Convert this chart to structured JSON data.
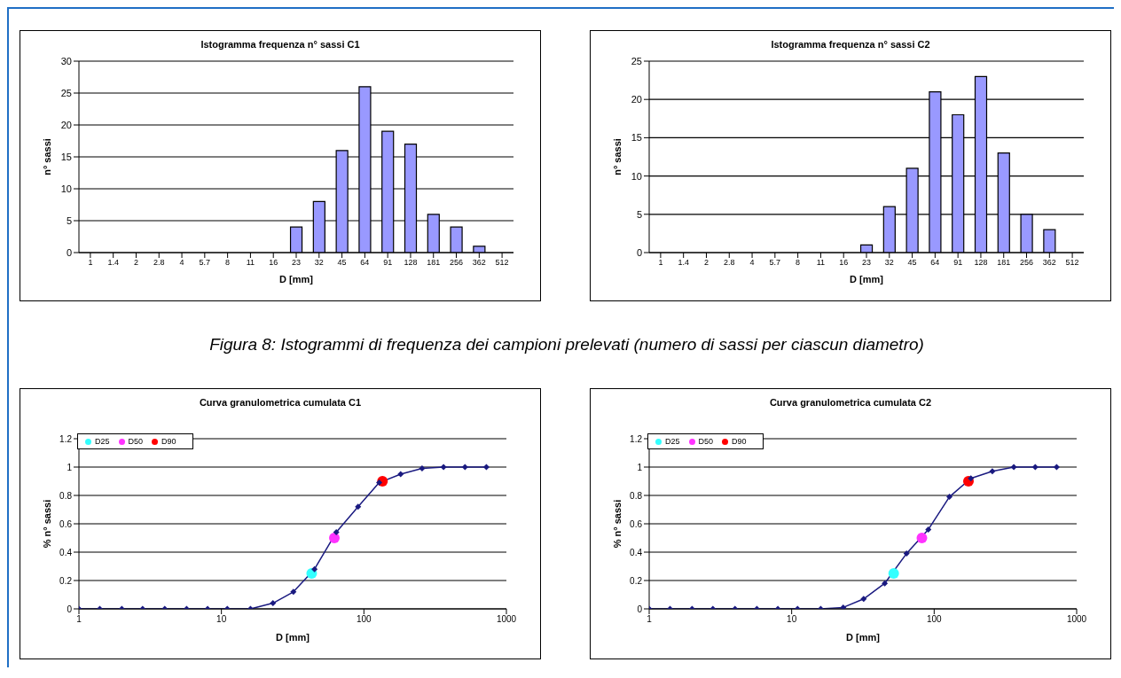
{
  "chart_data": [
    {
      "type": "bar",
      "title": "Istogramma frequenza n° sassi C1",
      "xlabel": "D [mm]",
      "ylabel": "n° sassi",
      "categories": [
        "1",
        "1.4",
        "2",
        "2.8",
        "4",
        "5.7",
        "8",
        "11",
        "16",
        "23",
        "32",
        "45",
        "64",
        "91",
        "128",
        "181",
        "256",
        "362",
        "512"
      ],
      "values": [
        0,
        0,
        0,
        0,
        0,
        0,
        0,
        0,
        0,
        4,
        8,
        16,
        26,
        19,
        17,
        6,
        4,
        1,
        0
      ],
      "color": "#9999ff",
      "ylim": [
        0,
        30
      ],
      "yticks": [
        0,
        5,
        10,
        15,
        20,
        25,
        30
      ],
      "grid": "y",
      "annotations": [
        "Figura 8: Istogrammi di frequenza dei campioni prelevati (numero di sassi per ciascun diametro)"
      ]
    },
    {
      "type": "bar",
      "title": "Istogramma frequenza n° sassi C2",
      "xlabel": "D [mm]",
      "ylabel": "n° sassi",
      "categories": [
        "1",
        "1.4",
        "2",
        "2.8",
        "4",
        "5.7",
        "8",
        "11",
        "16",
        "23",
        "32",
        "45",
        "64",
        "91",
        "128",
        "181",
        "256",
        "362",
        "512"
      ],
      "values": [
        0,
        0,
        0,
        0,
        0,
        0,
        0,
        0,
        0,
        1,
        6,
        11,
        21,
        18,
        23,
        13,
        5,
        3,
        0
      ],
      "color": "#9999ff",
      "ylim": [
        0,
        25
      ],
      "yticks": [
        0,
        5,
        10,
        15,
        20,
        25
      ],
      "grid": "y"
    },
    {
      "type": "line",
      "title": "Curva granulometrica cumulata C1",
      "xlabel": "D [mm]",
      "ylabel": "% n° sassi",
      "log": "x",
      "xlim": [
        1,
        1000
      ],
      "xticks": [
        1,
        10,
        100,
        1000
      ],
      "ylim": [
        0,
        1.2
      ],
      "yticks": [
        0,
        0.2,
        0.4,
        0.6,
        0.8,
        1,
        1.2
      ],
      "grid": "y",
      "legend": "top left",
      "marker": "diamond",
      "series": [
        {
          "type": "line",
          "color": "#1a1a80",
          "x": [
            1,
            1.4,
            2,
            2.8,
            4,
            5.7,
            8,
            11,
            16,
            23,
            32,
            45,
            64,
            91,
            128,
            181,
            256,
            362,
            512,
            724
          ],
          "values": [
            0,
            0,
            0,
            0,
            0,
            0,
            0,
            0,
            0,
            0.04,
            0.12,
            0.28,
            0.54,
            0.72,
            0.89,
            0.95,
            0.99,
            1,
            1,
            1
          ]
        },
        {
          "type": "scatter",
          "name": "D25",
          "color": "#33ffff",
          "marker": "circle",
          "x": [
            43
          ],
          "values": [
            0.25
          ]
        },
        {
          "type": "scatter",
          "name": "D50",
          "color": "#ff33ff",
          "marker": "circle",
          "x": [
            62
          ],
          "values": [
            0.5
          ]
        },
        {
          "type": "scatter",
          "name": "D90",
          "color": "#ff0000",
          "marker": "circle",
          "x": [
            135
          ],
          "values": [
            0.9
          ]
        }
      ]
    },
    {
      "type": "line",
      "title": "Curva granulometrica cumulata C2",
      "xlabel": "D [mm]",
      "ylabel": "% n° sassi",
      "log": "x",
      "xlim": [
        1,
        1000
      ],
      "xticks": [
        1,
        10,
        100,
        1000
      ],
      "ylim": [
        0,
        1.2
      ],
      "yticks": [
        0,
        0.2,
        0.4,
        0.6,
        0.8,
        1,
        1.2
      ],
      "grid": "y",
      "legend": "top left",
      "marker": "diamond",
      "series": [
        {
          "type": "line",
          "color": "#1a1a80",
          "x": [
            1,
            1.4,
            2,
            2.8,
            4,
            5.7,
            8,
            11,
            16,
            23,
            32,
            45,
            64,
            91,
            128,
            181,
            256,
            362,
            512,
            724
          ],
          "values": [
            0,
            0,
            0,
            0,
            0,
            0,
            0,
            0,
            0,
            0.01,
            0.07,
            0.18,
            0.39,
            0.56,
            0.79,
            0.92,
            0.97,
            1,
            1,
            1
          ]
        },
        {
          "type": "scatter",
          "name": "D25",
          "color": "#33ffff",
          "marker": "circle",
          "x": [
            52
          ],
          "values": [
            0.25
          ]
        },
        {
          "type": "scatter",
          "name": "D50",
          "color": "#ff33ff",
          "marker": "circle",
          "x": [
            82
          ],
          "values": [
            0.5
          ]
        },
        {
          "type": "scatter",
          "name": "D90",
          "color": "#ff0000",
          "marker": "circle",
          "x": [
            174
          ],
          "values": [
            0.9
          ]
        }
      ]
    }
  ]
}
